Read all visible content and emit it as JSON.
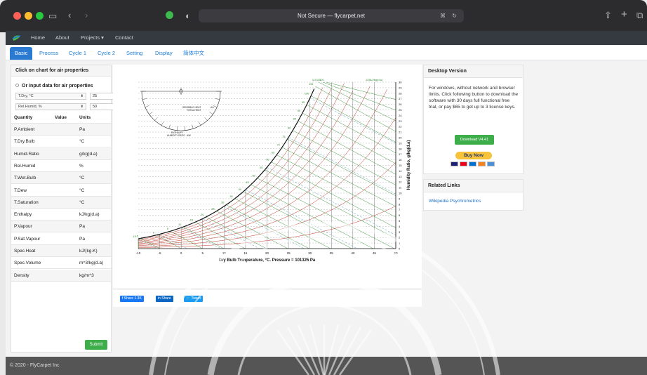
{
  "browser": {
    "url_text": "Not Secure — flycarpet.net"
  },
  "nav": {
    "links": [
      "Home",
      "About",
      "Projects ▾",
      "Contact"
    ]
  },
  "tabs": [
    "Basic",
    "Process",
    "Cycle 1",
    "Cycle 2",
    "Setting",
    "Display",
    "简体中文"
  ],
  "left_panel": {
    "title": "Click on chart for air properties",
    "subtitle": "Or input data for air properties",
    "inputs": [
      {
        "select": "T.Dry, °C",
        "value": "25"
      },
      {
        "select": "Rel.Humid, %",
        "value": "50"
      }
    ],
    "headers": {
      "quantity": "Quantity",
      "value": "Value",
      "units": "Units"
    },
    "rows": [
      {
        "q": "P.Ambient",
        "u": "Pa"
      },
      {
        "q": "T.Dry.Bulb",
        "u": "°C"
      },
      {
        "q": "Humid.Ratio",
        "u": "g/kg(d.a)"
      },
      {
        "q": "Rel.Humid",
        "u": "%"
      },
      {
        "q": "T.Wet.Bulb",
        "u": "°C"
      },
      {
        "q": "T.Dew",
        "u": "°C"
      },
      {
        "q": "T.Saturation",
        "u": "°C"
      },
      {
        "q": "Enthalpy",
        "u": "kJ/kg(d.a)"
      },
      {
        "q": "P.Vapour",
        "u": "Pa"
      },
      {
        "q": "P.Sat.Vapour",
        "u": "Pa"
      },
      {
        "q": "Spec.Heat",
        "u": "kJ/(kg.K)"
      },
      {
        "q": "Spec.Volume",
        "u": "m^3/kg(d.a)"
      },
      {
        "q": "Density",
        "u": "kg/m^3"
      }
    ],
    "submit_label": "Submit"
  },
  "chart_data": {
    "type": "line",
    "title": "",
    "xlabel": "Dry Bulb Temperature, °C. Pressure = 101325 Pa",
    "ylabel": "Humidity Ratio, g/kg(d.a)",
    "xlim": [
      -10,
      50
    ],
    "ylim": [
      0,
      30
    ],
    "x_ticks": [
      -10,
      -5,
      0,
      5,
      10,
      15,
      20,
      25,
      30,
      35,
      40,
      45,
      50
    ],
    "y_ticks": [
      0,
      1,
      2,
      3,
      4,
      5,
      6,
      7,
      8,
      9,
      10,
      11,
      12,
      13,
      14,
      15,
      16,
      17,
      18,
      19,
      20,
      21,
      22,
      23,
      24,
      25,
      26,
      27,
      28,
      29,
      30
    ],
    "rh_curves_percent": [
      10,
      20,
      30,
      40,
      50,
      60,
      70,
      80,
      90,
      100
    ],
    "saturation_curve": {
      "x": [
        -10,
        -5,
        0,
        5,
        10,
        15,
        20,
        25,
        30,
        35,
        40,
        45,
        50
      ],
      "y": [
        1.6,
        2.5,
        3.8,
        5.4,
        7.7,
        10.7,
        14.8,
        20.2,
        27.4,
        30,
        30,
        30,
        30
      ]
    },
    "enthalpy_labels": [
      -10,
      -5,
      0,
      5,
      10,
      15,
      20,
      25,
      30,
      35,
      40,
      45,
      50,
      55,
      60,
      65,
      70,
      75,
      80,
      85,
      90,
      95,
      100,
      105,
      110,
      115,
      120
    ],
    "enthalpy_top_label": "125kJ/kg(d.a)",
    "protractor": {
      "sensible_label": "SENSIBLE HEAT",
      "total_label": "TOTAL HEAT",
      "enthalpy_label": "ENTHALPY",
      "humidity_label": "HUMIDITY RATIO",
      "delta_symbol": "Δh",
      "delta_w_symbol": "ΔW"
    },
    "colors": {
      "saturation": "#111111",
      "rh": "#c0392b",
      "enthalpy": "#2e8b2e",
      "wetbulb": "#2a8a9a",
      "grid": "#888888"
    }
  },
  "share": {
    "facebook": "f Share 1.3K",
    "linkedin": "in Share",
    "twitter": "🐦 Tweet"
  },
  "right_panel": {
    "title": "Desktop Version",
    "text": "For windows, without network and browser limits. Click following button to download the software with 30 days full functional free trial, or pay $65 to get up to 3 license keys.",
    "download_label": "Download V4.41",
    "buy_label": "Buy Now",
    "card_colors": [
      "#1a1f71",
      "#eb001b",
      "#016fd0",
      "#f58220",
      "#4a90d9"
    ]
  },
  "links_panel": {
    "title": "Related Links",
    "link": "Wikipedia Psychrometrics"
  },
  "footer": {
    "text": "© 2020 - FlyCarpet Inc"
  }
}
